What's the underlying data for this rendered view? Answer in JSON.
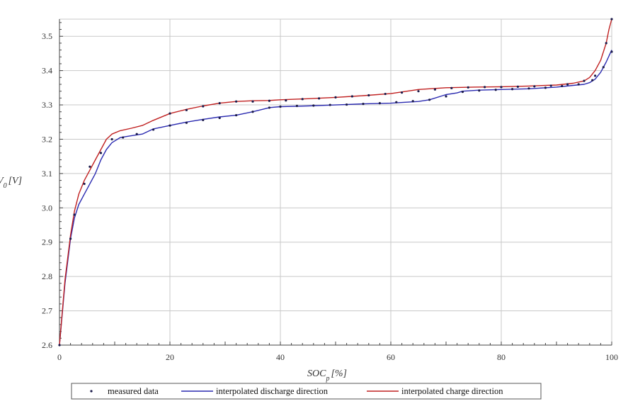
{
  "chart_data": {
    "type": "line",
    "xlabel": {
      "base": "SOC",
      "sub": "p",
      "unit": "[%]"
    },
    "ylabel": {
      "base": "V",
      "sub": "0",
      "unit": "[V]"
    },
    "xlim": [
      0,
      100
    ],
    "ylim": [
      2.6,
      3.55
    ],
    "x_ticks": [
      0,
      20,
      40,
      60,
      80,
      100
    ],
    "y_ticks": [
      2.6,
      2.7,
      2.8,
      2.9,
      3.0,
      3.1,
      3.2,
      3.3,
      3.4,
      3.5
    ],
    "grid": true,
    "legend_position": "bottom",
    "legend": [
      {
        "label": "measured data",
        "color": "#1a1a4a",
        "kind": "marker"
      },
      {
        "label": "interpolated discharge direction",
        "color": "#2a2ab0",
        "kind": "line"
      },
      {
        "label": "interpolated charge direction",
        "color": "#c02020",
        "kind": "line"
      }
    ],
    "series": [
      {
        "name": "interpolated discharge direction",
        "color": "#2a2ab0",
        "x": [
          0,
          1,
          2,
          2.7,
          3.5,
          4.5,
          5.5,
          6.5,
          7.5,
          8.5,
          9.5,
          11,
          13,
          15,
          17,
          20,
          23,
          26,
          29,
          32,
          35,
          38,
          40,
          45,
          50,
          55,
          60,
          65,
          67,
          70,
          72,
          73,
          76,
          80,
          85,
          90,
          93,
          95,
          96,
          97,
          98,
          99,
          100
        ],
        "y": [
          2.6,
          2.78,
          2.91,
          2.97,
          3.01,
          3.04,
          3.07,
          3.1,
          3.14,
          3.17,
          3.19,
          3.205,
          3.21,
          3.215,
          3.23,
          3.24,
          3.25,
          3.258,
          3.265,
          3.27,
          3.28,
          3.292,
          3.295,
          3.297,
          3.3,
          3.303,
          3.305,
          3.31,
          3.315,
          3.33,
          3.335,
          3.34,
          3.343,
          3.345,
          3.347,
          3.352,
          3.357,
          3.36,
          3.365,
          3.375,
          3.395,
          3.425,
          3.46
        ]
      },
      {
        "name": "interpolated charge direction",
        "color": "#c02020",
        "x": [
          0,
          1,
          2,
          2.7,
          3.5,
          4.5,
          5.5,
          6.5,
          7.5,
          8.5,
          9.5,
          11,
          13,
          15,
          17,
          20,
          23,
          26,
          29,
          32,
          35,
          38,
          40,
          45,
          50,
          55,
          60,
          65,
          68,
          70,
          75,
          80,
          85,
          90,
          93,
          95,
          96,
          97,
          98,
          99,
          99.5,
          100
        ],
        "y": [
          2.6,
          2.79,
          2.92,
          2.99,
          3.04,
          3.08,
          3.11,
          3.14,
          3.17,
          3.2,
          3.215,
          3.225,
          3.232,
          3.24,
          3.255,
          3.275,
          3.287,
          3.297,
          3.305,
          3.31,
          3.312,
          3.313,
          3.315,
          3.318,
          3.322,
          3.327,
          3.333,
          3.345,
          3.348,
          3.35,
          3.352,
          3.353,
          3.355,
          3.358,
          3.363,
          3.37,
          3.38,
          3.4,
          3.43,
          3.48,
          3.52,
          3.55
        ]
      },
      {
        "name": "measured data",
        "color": "#1a1a4a",
        "points": [
          [
            0,
            2.6
          ],
          [
            2,
            2.91
          ],
          [
            2.7,
            2.98
          ],
          [
            4.5,
            3.07
          ],
          [
            5.5,
            3.12
          ],
          [
            7.5,
            3.16
          ],
          [
            9.5,
            3.2
          ],
          [
            11.5,
            3.205
          ],
          [
            14,
            3.215
          ],
          [
            17,
            3.228
          ],
          [
            20,
            3.24
          ],
          [
            23,
            3.248
          ],
          [
            26,
            3.256
          ],
          [
            29,
            3.262
          ],
          [
            32,
            3.27
          ],
          [
            35,
            3.28
          ],
          [
            38,
            3.292
          ],
          [
            40,
            3.295
          ],
          [
            43,
            3.297
          ],
          [
            46,
            3.298
          ],
          [
            49,
            3.3
          ],
          [
            52,
            3.301
          ],
          [
            55,
            3.303
          ],
          [
            58,
            3.305
          ],
          [
            61,
            3.308
          ],
          [
            64,
            3.311
          ],
          [
            67,
            3.315
          ],
          [
            70,
            3.325
          ],
          [
            73,
            3.338
          ],
          [
            76,
            3.342
          ],
          [
            79,
            3.344
          ],
          [
            82,
            3.346
          ],
          [
            85,
            3.348
          ],
          [
            88,
            3.35
          ],
          [
            91,
            3.355
          ],
          [
            94,
            3.36
          ],
          [
            96.5,
            3.372
          ],
          [
            98.5,
            3.41
          ],
          [
            100,
            3.455
          ],
          [
            20,
            3.275
          ],
          [
            23,
            3.285
          ],
          [
            26,
            3.296
          ],
          [
            29,
            3.305
          ],
          [
            32,
            3.31
          ],
          [
            35,
            3.31
          ],
          [
            38,
            3.312
          ],
          [
            41,
            3.313
          ],
          [
            44,
            3.317
          ],
          [
            47,
            3.319
          ],
          [
            50,
            3.322
          ],
          [
            53,
            3.325
          ],
          [
            56,
            3.328
          ],
          [
            59,
            3.332
          ],
          [
            62,
            3.336
          ],
          [
            65,
            3.34
          ],
          [
            68,
            3.345
          ],
          [
            71,
            3.349
          ],
          [
            74,
            3.351
          ],
          [
            77,
            3.352
          ],
          [
            80,
            3.352
          ],
          [
            83,
            3.353
          ],
          [
            86,
            3.354
          ],
          [
            89,
            3.356
          ],
          [
            92,
            3.36
          ],
          [
            95,
            3.37
          ],
          [
            97,
            3.385
          ],
          [
            99,
            3.48
          ],
          [
            100,
            3.55
          ]
        ]
      }
    ]
  }
}
